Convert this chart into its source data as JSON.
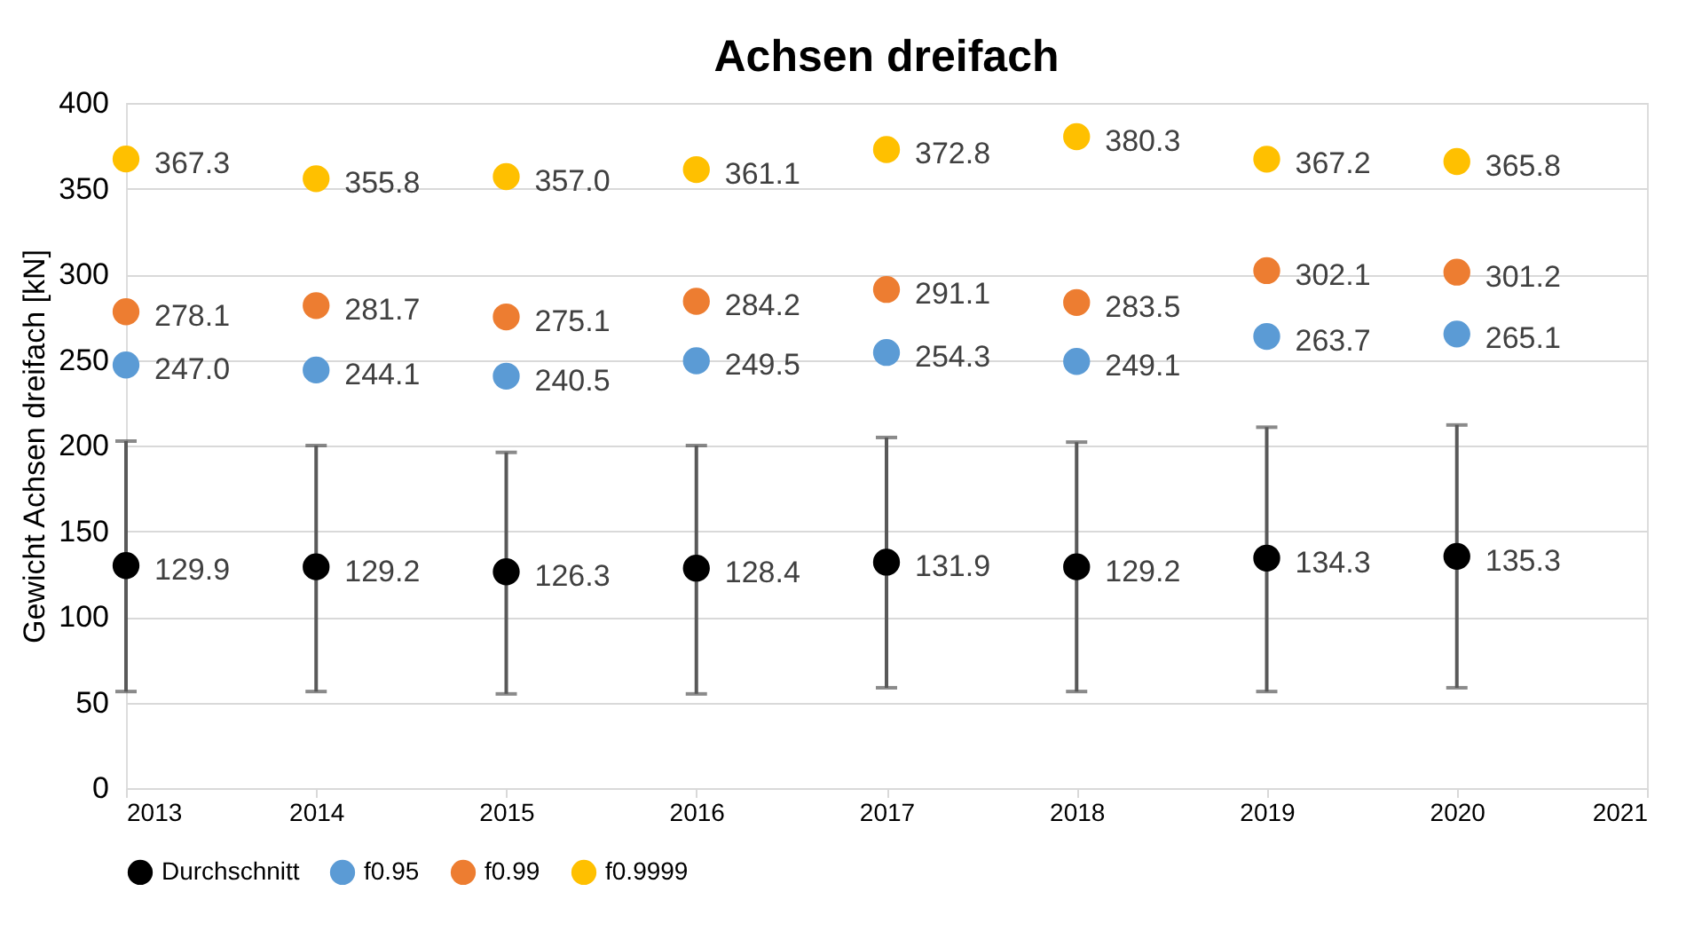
{
  "chart_data": {
    "type": "scatter",
    "title": "Achsen dreifach",
    "ylabel": "Gewicht Achsen dreifach [kN]",
    "x": [
      2013,
      2014,
      2015,
      2016,
      2017,
      2018,
      2019,
      2020
    ],
    "xlim": [
      2013,
      2021
    ],
    "xticks": [
      2013,
      2014,
      2015,
      2016,
      2017,
      2018,
      2019,
      2020,
      2021
    ],
    "ylim": [
      0,
      400
    ],
    "yticks": [
      0,
      50,
      100,
      150,
      200,
      250,
      300,
      350,
      400
    ],
    "grid": "y",
    "legend": "bottom",
    "marker": "circle",
    "series": [
      {
        "name": "Durchschnitt",
        "color": "#000000",
        "values": [
          129.9,
          129.2,
          126.3,
          128.4,
          131.9,
          129.2,
          134.3,
          135.3
        ],
        "value_labels": [
          "129.9",
          "129.2",
          "126.3",
          "128.4",
          "131.9",
          "129.2",
          "134.3",
          "135.3"
        ],
        "errors": [
          [
            56.4,
            202.6
          ],
          [
            56.4,
            200
          ],
          [
            55,
            196
          ],
          [
            55,
            200
          ],
          [
            58.6,
            204.7
          ],
          [
            56.4,
            202
          ],
          [
            56.4,
            210.7
          ],
          [
            58.6,
            212
          ]
        ]
      },
      {
        "name": "f0.95",
        "color": "#5b9bd5",
        "values": [
          247.0,
          244.1,
          240.5,
          249.5,
          254.3,
          249.1,
          263.7,
          265.1
        ],
        "value_labels": [
          "247.0",
          "244.1",
          "240.5",
          "249.5",
          "254.3",
          "249.1",
          "263.7",
          "265.1"
        ]
      },
      {
        "name": "f0.99",
        "color": "#ed7d31",
        "values": [
          278.1,
          281.7,
          275.1,
          284.2,
          291.1,
          283.5,
          302.1,
          301.2
        ],
        "value_labels": [
          "278.1",
          "281.7",
          "275.1",
          "284.2",
          "291.1",
          "283.5",
          "302.1",
          "301.2"
        ]
      },
      {
        "name": "f0.9999",
        "color": "#ffc000",
        "values": [
          367.3,
          355.8,
          357.0,
          361.1,
          372.8,
          380.3,
          367.2,
          365.8
        ],
        "value_labels": [
          "367.3",
          "355.8",
          "357.0",
          "361.1",
          "372.8",
          "380.3",
          "367.2",
          "365.8"
        ]
      }
    ]
  }
}
